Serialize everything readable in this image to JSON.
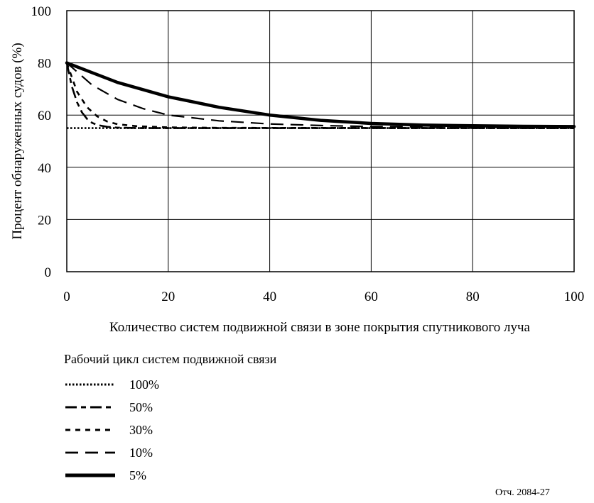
{
  "chart_data": {
    "type": "line",
    "title": "",
    "xlabel": "Количество систем подвижной связи в зоне покрытия спутникового луча",
    "ylabel": "Процент обнаруженных судов (%)",
    "xlim": [
      0,
      100
    ],
    "ylim": [
      0,
      100
    ],
    "xticks": [
      "0",
      "20",
      "40",
      "60",
      "80",
      "100"
    ],
    "yticks": [
      "0",
      "20",
      "40",
      "60",
      "80",
      "100"
    ],
    "grid": true,
    "legend_title": "Рабочий цикл систем подвижной связи",
    "legend_position": "bottom",
    "series": [
      {
        "name": "100%",
        "style": "dotted",
        "x": [
          0,
          100
        ],
        "y": [
          55,
          55
        ]
      },
      {
        "name": "50%",
        "style": "long-short-dash",
        "x": [
          0,
          1,
          2,
          3,
          4,
          5,
          6,
          8,
          10,
          15,
          100
        ],
        "y": [
          80,
          71,
          65,
          61,
          58.5,
          57,
          56.2,
          55.5,
          55.2,
          55,
          55
        ]
      },
      {
        "name": "30%",
        "style": "short-dash",
        "x": [
          0,
          2,
          4,
          6,
          8,
          10,
          14,
          20,
          30,
          100
        ],
        "y": [
          80,
          69,
          63,
          59.5,
          57.5,
          56.5,
          55.7,
          55.3,
          55.1,
          55
        ]
      },
      {
        "name": "10%",
        "style": "long-dash",
        "x": [
          0,
          5,
          10,
          15,
          20,
          30,
          40,
          50,
          60,
          80,
          100
        ],
        "y": [
          80,
          71.5,
          66,
          62.5,
          60,
          57.8,
          56.6,
          56,
          55.6,
          55.3,
          55.2
        ]
      },
      {
        "name": "5%",
        "style": "solid-thick",
        "x": [
          0,
          10,
          20,
          30,
          40,
          50,
          60,
          70,
          80,
          90,
          100
        ],
        "y": [
          80,
          72.5,
          67,
          63,
          60,
          58,
          56.8,
          56.2,
          55.9,
          55.7,
          55.6
        ]
      }
    ]
  },
  "source_ref": "Отч. 2084-27"
}
